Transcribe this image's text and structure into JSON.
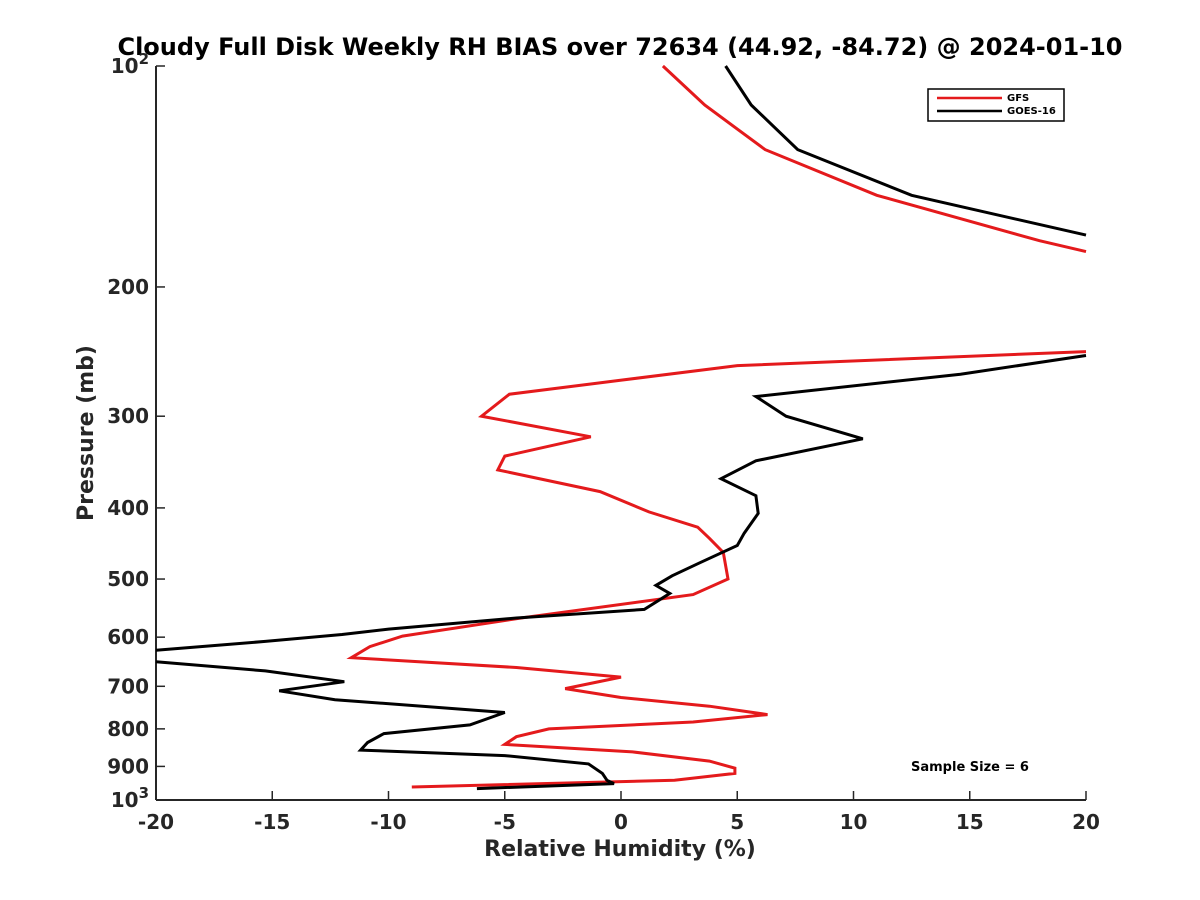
{
  "chart_data": {
    "type": "line",
    "title": "Cloudy Full Disk Weekly RH BIAS over 72634 (44.92, -84.72) @ 2024-01-10",
    "xlabel": "Relative Humidity (%)",
    "ylabel": "Pressure (mb)",
    "xlim": [
      -20,
      20
    ],
    "ylim": [
      100,
      1000
    ],
    "yscale": "log",
    "y_reversed": true,
    "xticks": [
      -20,
      -15,
      -10,
      -5,
      0,
      5,
      10,
      15,
      20
    ],
    "xtick_labels": [
      "-20",
      "-15",
      "-10",
      "-5",
      "0",
      "5",
      "10",
      "15",
      "20"
    ],
    "yticks": [
      {
        "value": 100,
        "base": "10",
        "exp": "2"
      },
      {
        "value": 200,
        "label": "200"
      },
      {
        "value": 300,
        "label": "300"
      },
      {
        "value": 400,
        "label": "400"
      },
      {
        "value": 500,
        "label": "500"
      },
      {
        "value": 600,
        "label": "600"
      },
      {
        "value": 700,
        "label": "700"
      },
      {
        "value": 800,
        "label": "800"
      },
      {
        "value": 900,
        "label": "900"
      },
      {
        "value": 1000,
        "base": "10",
        "exp": "3"
      }
    ],
    "legend_position": "top-right",
    "grid": false,
    "annotation": "Sample Size = 6",
    "series": [
      {
        "name": "GFS",
        "color": "#e41a1c",
        "points": [
          [
            1.8,
            100
          ],
          [
            3.6,
            113
          ],
          [
            6.2,
            130
          ],
          [
            11.0,
            150
          ],
          [
            18.0,
            173
          ],
          [
            20.0,
            179
          ],
          [
            null,
            240
          ],
          [
            20.0,
            245
          ],
          [
            5.0,
            256
          ],
          [
            -4.8,
            280
          ],
          [
            -6.0,
            300
          ],
          [
            -1.3,
            320
          ],
          [
            -5.0,
            340
          ],
          [
            -5.3,
            355
          ],
          [
            -0.9,
            380
          ],
          [
            1.2,
            405
          ],
          [
            3.3,
            425
          ],
          [
            3.8,
            440
          ],
          [
            4.4,
            460
          ],
          [
            4.6,
            500
          ],
          [
            3.1,
            525
          ],
          [
            -4.3,
            565
          ],
          [
            -9.4,
            598
          ],
          [
            -10.8,
            618
          ],
          [
            -11.6,
            640
          ],
          [
            -4.5,
            660
          ],
          [
            0.0,
            680
          ],
          [
            -2.4,
            705
          ],
          [
            0.0,
            725
          ],
          [
            3.8,
            745
          ],
          [
            6.3,
            765
          ],
          [
            3.1,
            783
          ],
          [
            -3.1,
            800
          ],
          [
            -4.5,
            820
          ],
          [
            -5.0,
            840
          ],
          [
            0.5,
            860
          ],
          [
            3.8,
            885
          ],
          [
            4.9,
            905
          ],
          [
            4.9,
            920
          ],
          [
            2.3,
            940
          ],
          [
            -9.0,
            960
          ]
        ]
      },
      {
        "name": "GOES-16",
        "color": "#000000",
        "points": [
          [
            4.5,
            100
          ],
          [
            5.6,
            113
          ],
          [
            7.6,
            130
          ],
          [
            12.5,
            150
          ],
          [
            20.0,
            170
          ],
          [
            null,
            245
          ],
          [
            20.0,
            248
          ],
          [
            14.6,
            263
          ],
          [
            5.8,
            282
          ],
          [
            7.1,
            300
          ],
          [
            10.4,
            322
          ],
          [
            5.8,
            345
          ],
          [
            4.3,
            365
          ],
          [
            5.8,
            385
          ],
          [
            5.9,
            407
          ],
          [
            5.3,
            433
          ],
          [
            5.0,
            450
          ],
          [
            3.4,
            475
          ],
          [
            2.2,
            495
          ],
          [
            1.5,
            510
          ],
          [
            2.1,
            523
          ],
          [
            1.0,
            550
          ],
          [
            -4.5,
            565
          ],
          [
            -10.0,
            585
          ],
          [
            -12.0,
            595
          ],
          [
            -15.3,
            608
          ],
          [
            -20.0,
            625
          ],
          [
            null,
            640
          ],
          [
            -20.0,
            648
          ],
          [
            -15.3,
            667
          ],
          [
            -11.9,
            690
          ],
          [
            -14.7,
            710
          ],
          [
            -12.3,
            730
          ],
          [
            -5.0,
            760
          ],
          [
            -6.5,
            790
          ],
          [
            -10.2,
            812
          ],
          [
            -10.9,
            835
          ],
          [
            -11.2,
            855
          ],
          [
            -5.0,
            870
          ],
          [
            -1.4,
            893
          ],
          [
            -0.8,
            920
          ],
          [
            -0.6,
            940
          ],
          [
            -0.3,
            950
          ],
          [
            -6.2,
            965
          ]
        ]
      }
    ]
  }
}
